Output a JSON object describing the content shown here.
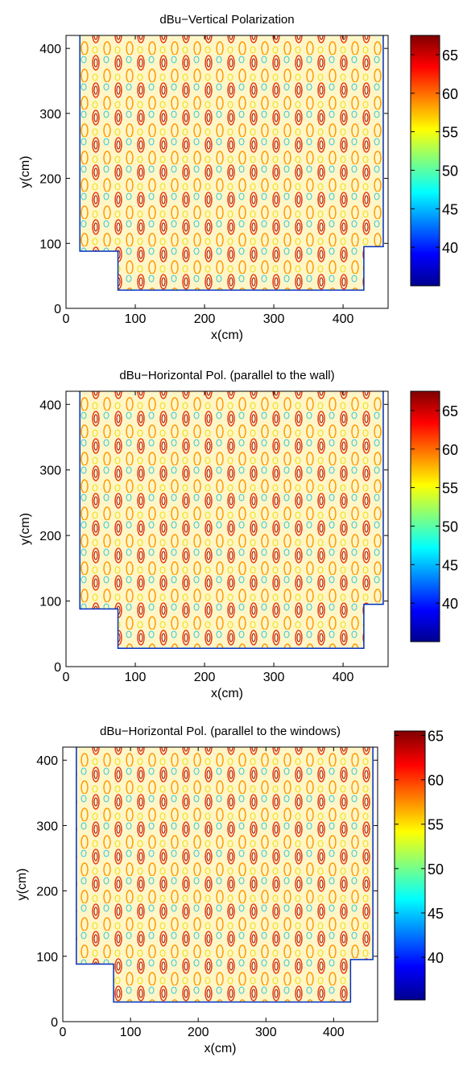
{
  "chart_data": [
    {
      "type": "contour",
      "title": "dBu−Vertical Polarization",
      "xlabel": "x(cm)",
      "ylabel": "y(cm)",
      "xlim": [
        0,
        465
      ],
      "ylim": [
        0,
        420
      ],
      "xticks": [
        0,
        100,
        200,
        300,
        400
      ],
      "yticks": [
        0,
        100,
        200,
        300,
        400
      ],
      "clim": [
        35,
        67.5
      ],
      "cticks": [
        40,
        45,
        50,
        55,
        60,
        65
      ],
      "colormap": "jet",
      "region": {
        "x": [
          20,
          20,
          75,
          75,
          430,
          430,
          458,
          458
        ],
        "y": [
          420,
          88,
          88,
          28,
          28,
          95,
          95,
          420
        ]
      }
    },
    {
      "type": "contour",
      "title": "dBu−Horizontal Pol. (parallel to the wall)",
      "xlabel": "x(cm)",
      "ylabel": "y(cm)",
      "xlim": [
        0,
        465
      ],
      "ylim": [
        0,
        420
      ],
      "xticks": [
        0,
        100,
        200,
        300,
        400
      ],
      "yticks": [
        0,
        100,
        200,
        300,
        400
      ],
      "clim": [
        35,
        67.5
      ],
      "cticks": [
        40,
        45,
        50,
        55,
        60,
        65
      ],
      "colormap": "jet",
      "region": {
        "x": [
          20,
          20,
          75,
          75,
          430,
          430,
          458,
          458
        ],
        "y": [
          420,
          88,
          88,
          28,
          28,
          95,
          95,
          420
        ]
      }
    },
    {
      "type": "contour",
      "title": "dBu−Horizontal Pol. (parallel to the windows)",
      "xlabel": "x(cm)",
      "ylabel": "y(cm)",
      "xlim": [
        0,
        465
      ],
      "ylim": [
        0,
        420
      ],
      "xticks": [
        0,
        100,
        200,
        300,
        400
      ],
      "yticks": [
        0,
        100,
        200,
        300,
        400
      ],
      "clim": [
        35.2,
        65.5
      ],
      "cticks": [
        40,
        45,
        50,
        55,
        60,
        65
      ],
      "colormap": "jet",
      "region": {
        "x": [
          20,
          20,
          75,
          75,
          425,
          425,
          458,
          458
        ],
        "y": [
          420,
          88,
          88,
          30,
          30,
          95,
          95,
          420
        ]
      }
    }
  ]
}
